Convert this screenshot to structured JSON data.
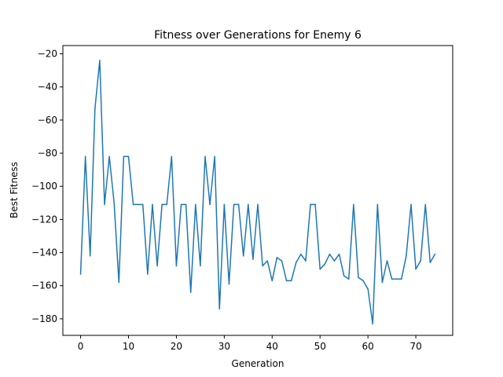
{
  "chart_data": {
    "type": "line",
    "title": "Fitness over Generations for Enemy 6",
    "xlabel": "Generation",
    "ylabel": "Best Fitness",
    "xlim": [
      -3.7,
      77.7
    ],
    "ylim": [
      -190,
      -15
    ],
    "xticks": [
      0,
      10,
      20,
      30,
      40,
      50,
      60,
      70
    ],
    "yticks": [
      -180,
      -160,
      -140,
      -120,
      -100,
      -80,
      -60,
      -40,
      -20
    ],
    "grid": false,
    "legend": "none",
    "series": [
      {
        "color": "#1f77b4",
        "x": [
          0,
          1,
          2,
          3,
          4,
          5,
          6,
          7,
          8,
          9,
          10,
          11,
          12,
          13,
          14,
          15,
          16,
          17,
          18,
          19,
          20,
          21,
          22,
          23,
          24,
          25,
          26,
          27,
          28,
          29,
          30,
          31,
          32,
          33,
          34,
          35,
          36,
          37,
          38,
          39,
          40,
          41,
          42,
          43,
          44,
          45,
          46,
          47,
          48,
          49,
          50,
          51,
          52,
          53,
          54,
          55,
          56,
          57,
          58,
          59,
          60,
          61,
          62,
          63,
          64,
          65,
          66,
          67,
          68,
          69,
          70,
          71,
          72,
          73,
          74
        ],
        "values": [
          -153,
          -82,
          -142,
          -53,
          -24,
          -111,
          -82,
          -110,
          -158,
          -82,
          -82,
          -111,
          -111,
          -111,
          -153,
          -111,
          -148,
          -111,
          -111,
          -82,
          -148,
          -111,
          -111,
          -164,
          -111,
          -148,
          -82,
          -111,
          -82,
          -174,
          -111,
          -159,
          -111,
          -111,
          -142,
          -111,
          -144,
          -111,
          -148,
          -145,
          -157,
          -143,
          -145,
          -157,
          -157,
          -146,
          -141,
          -145,
          -111,
          -111,
          -150,
          -147,
          -141,
          -145,
          -141,
          -154,
          -156,
          -111,
          -155,
          -157,
          -162,
          -183,
          -111,
          -158,
          -145,
          -156,
          -156,
          -156,
          -142,
          -111,
          -150,
          -145,
          -111,
          -146,
          -141
        ]
      }
    ]
  }
}
